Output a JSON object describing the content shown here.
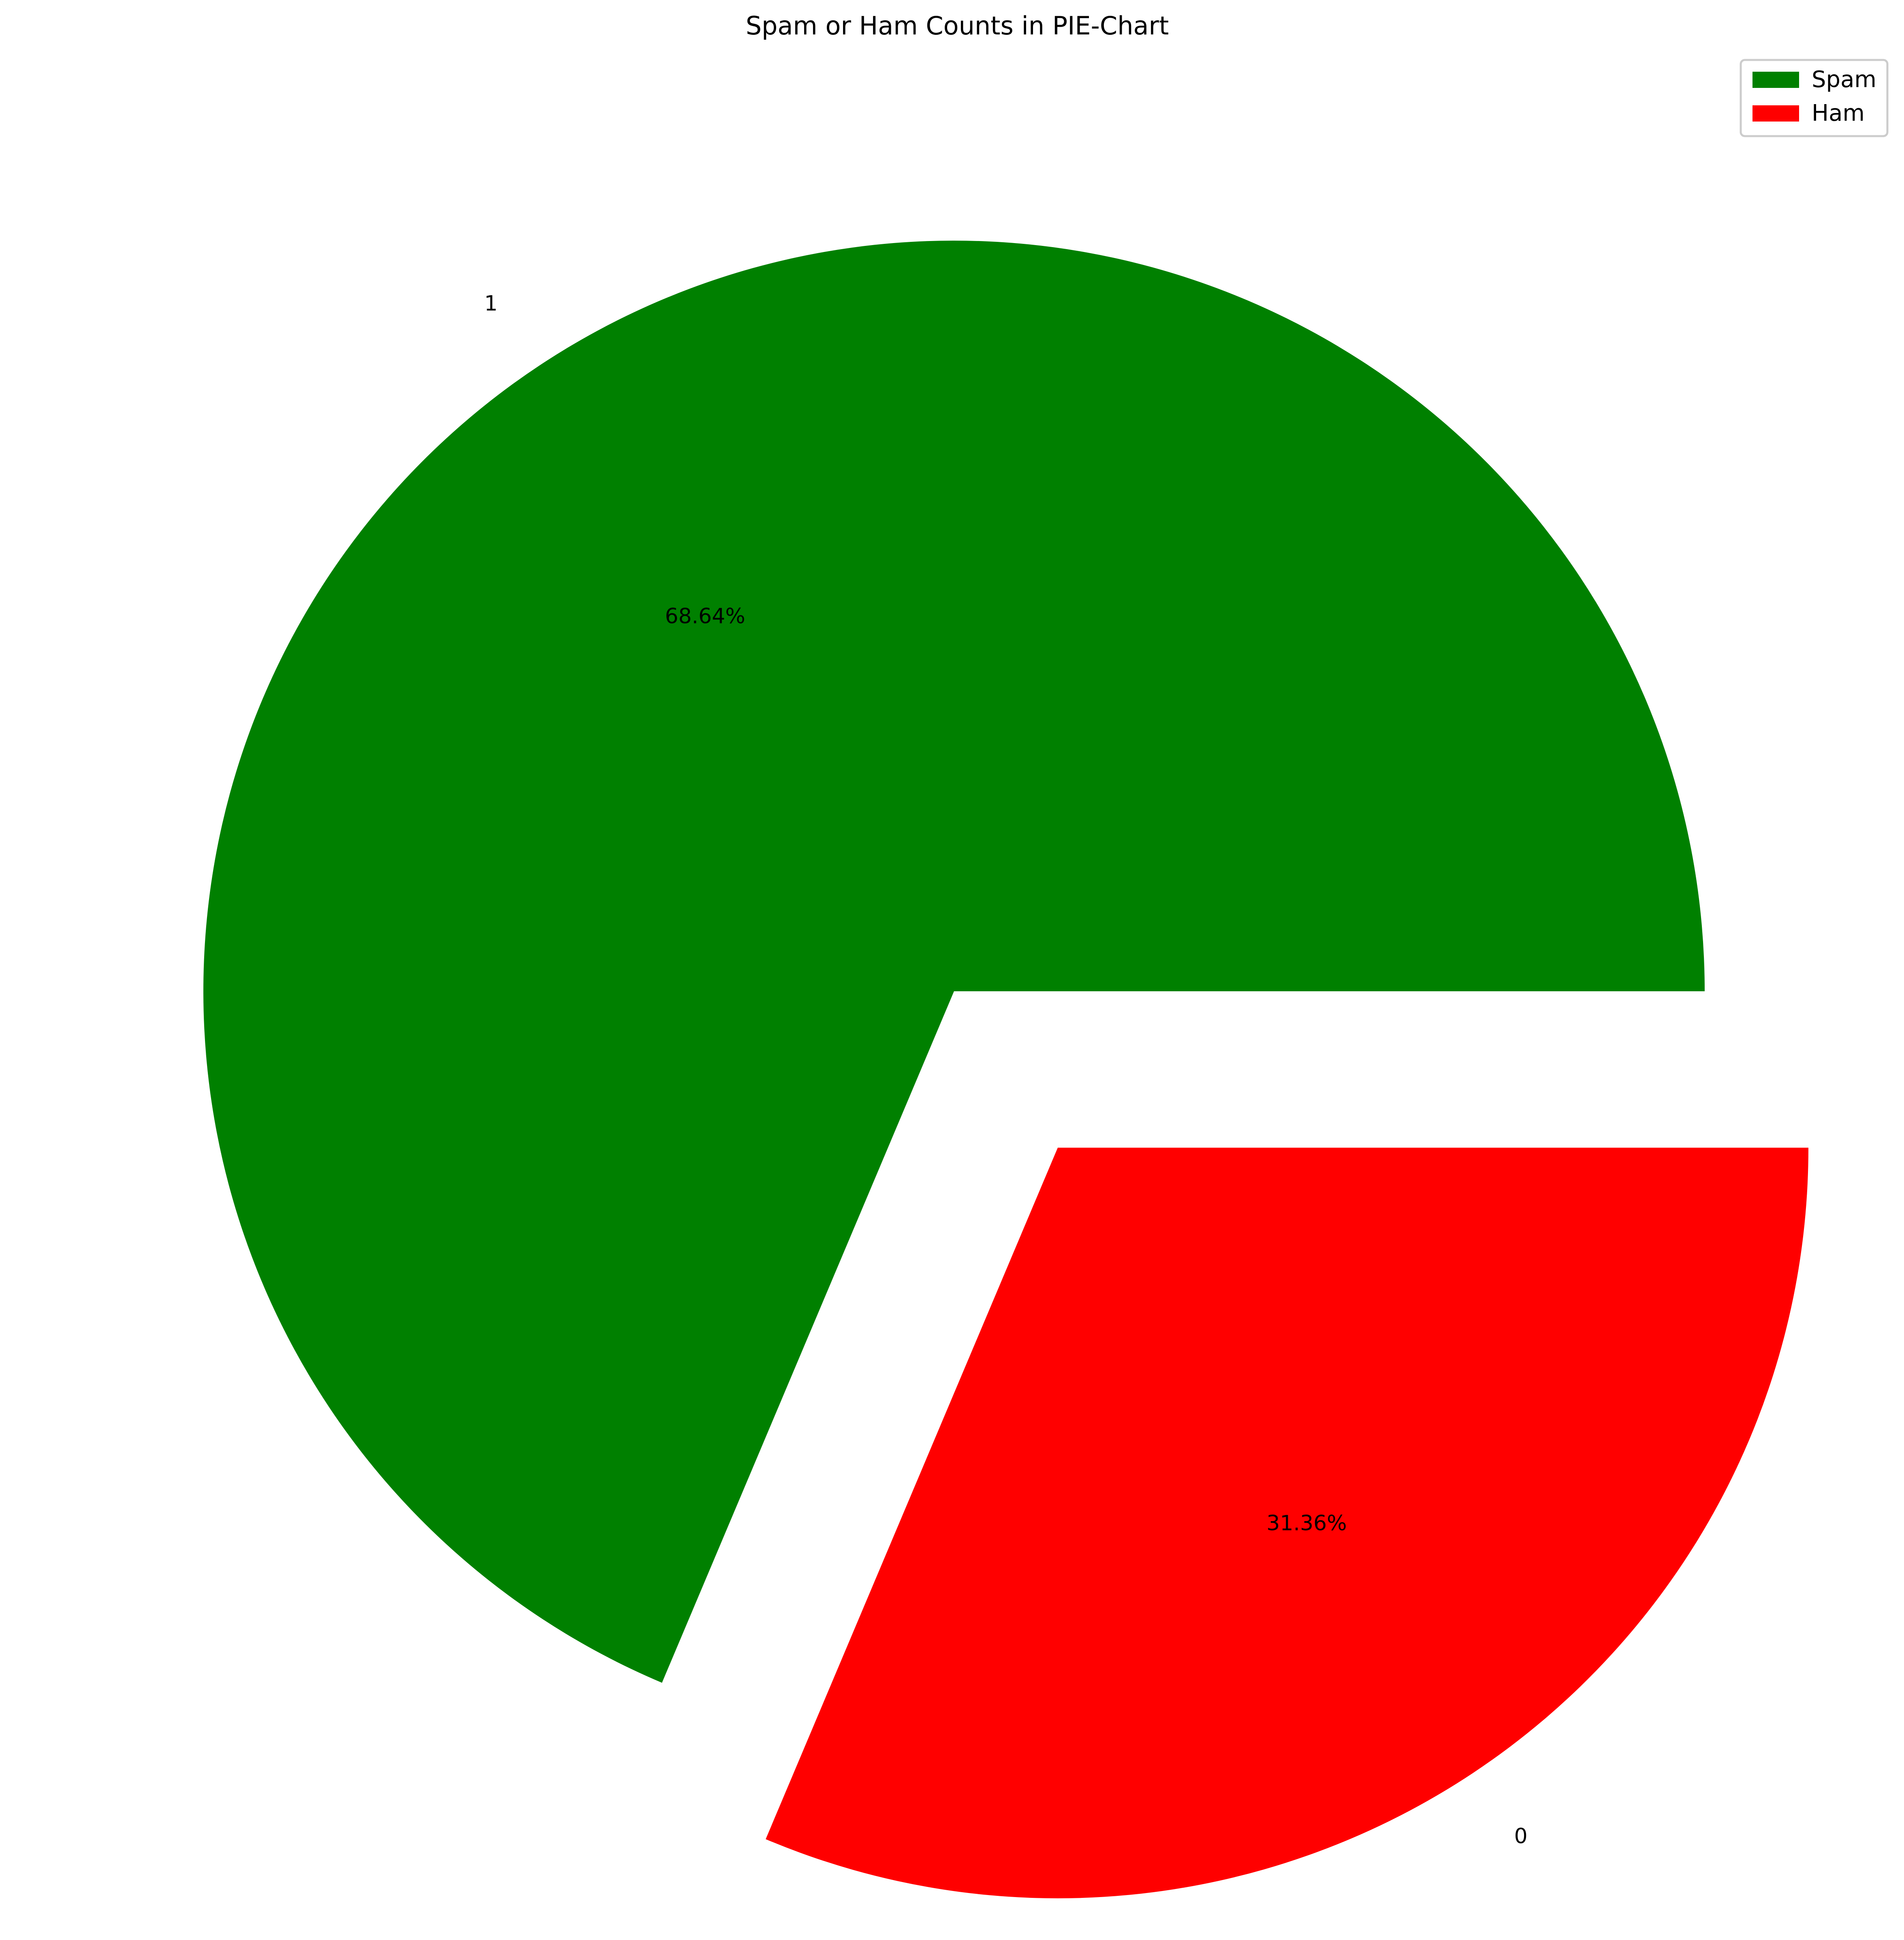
{
  "chart_data": {
    "type": "pie",
    "title": "Spam or Ham Counts in PIE-Chart",
    "slices": [
      {
        "label": "1",
        "value": 68.64,
        "pct_label": "68.64%",
        "color": "#008000",
        "exploded": false
      },
      {
        "label": "0",
        "value": 31.36,
        "pct_label": "31.36%",
        "color": "#ff0000",
        "exploded": true
      }
    ],
    "legend": {
      "placement": "top-right",
      "entries": [
        {
          "label": "Spam",
          "color": "#008000"
        },
        {
          "label": "Ham",
          "color": "#ff0000"
        }
      ]
    }
  }
}
